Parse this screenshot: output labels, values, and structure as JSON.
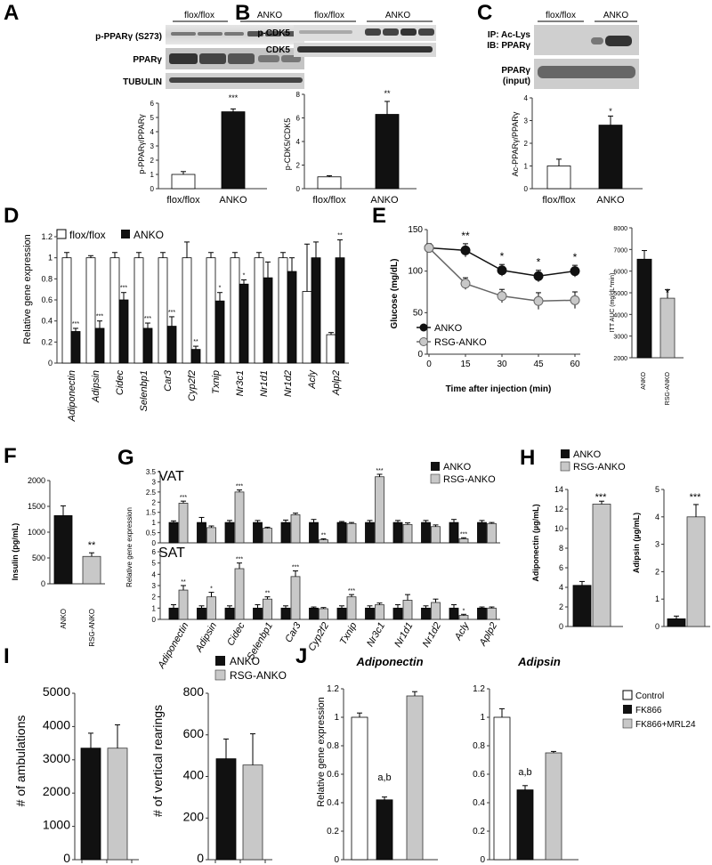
{
  "panels": {
    "A": {
      "letter": "A",
      "groups": [
        "flox/flox",
        "ANKO"
      ],
      "blots": [
        "p-PPARγ (S273)",
        "PPARγ",
        "TUBULIN"
      ],
      "ylabel": "p-PPARγ/PPARγ",
      "yticks": [
        "0",
        "1",
        "2",
        "3",
        "4",
        "5",
        "6"
      ],
      "xlabels": [
        "flox/flox",
        "ANKO"
      ],
      "sig": "***"
    },
    "B": {
      "letter": "B",
      "groups": [
        "flox/flox",
        "ANKO"
      ],
      "blots": [
        "p-CDK5",
        "CDK5"
      ],
      "ylabel": "p-CDK5/CDK5",
      "yticks": [
        "0",
        "2",
        "4",
        "6",
        "8"
      ],
      "xlabels": [
        "flox/flox",
        "ANKO"
      ],
      "sig": "**"
    },
    "C": {
      "letter": "C",
      "groups": [
        "flox/flox",
        "ANKO"
      ],
      "blots": [
        "IP: Ac-Lys",
        "IB: PPARγ",
        "PPARγ",
        "(input)"
      ],
      "ylabel": "Ac-PPARγ/PPARγ",
      "yticks": [
        "0",
        "1",
        "2",
        "3",
        "4"
      ],
      "xlabels": [
        "flox/flox",
        "ANKO"
      ],
      "sig": "*"
    },
    "D": {
      "letter": "D",
      "legend": [
        "flox/flox",
        "ANKO"
      ],
      "ylabel": "Relative gene expression",
      "yticks": [
        "0",
        "0.2",
        "0.4",
        "0.6",
        "0.8",
        "1",
        "1.2"
      ],
      "sigs": [
        "***",
        "***",
        "***",
        "***",
        "***",
        "**",
        "*",
        "*",
        "",
        "",
        "",
        "**"
      ]
    },
    "E": {
      "letter": "E",
      "ylabel": "Glucose (mg/dL)",
      "xlabel": "Time after injection (min)",
      "yticks": [
        "0",
        "50",
        "100",
        "150"
      ],
      "xticks": [
        "0",
        "15",
        "30",
        "45",
        "60"
      ],
      "legend": [
        "ANKO",
        "RSG-ANKO"
      ],
      "sigs": [
        "**",
        "*",
        "*",
        "*"
      ],
      "auc_ylabel": "ITT AUC (mg/dL*min)",
      "auc_yticks": [
        "2000",
        "3000",
        "4000",
        "5000",
        "6000",
        "7000",
        "8000"
      ],
      "auc_xlabels": [
        "ANKO",
        "RSG-ANKO"
      ],
      "auc_sig": "*"
    },
    "F": {
      "letter": "F",
      "ylabel": "Insulin (pg/mL)",
      "yticks": [
        "0",
        "500",
        "1000",
        "1500",
        "2000"
      ],
      "xlabels": [
        "ANKO",
        "RSG-ANKO"
      ],
      "sig": "**"
    },
    "G": {
      "letter": "G",
      "vat_label": "VAT",
      "sat_label": "SAT",
      "legend": [
        "ANKO",
        "RSG-ANKO"
      ],
      "ylabel": "Relative gene expression",
      "vat_yticks": [
        "0",
        "0.5",
        "1",
        "1.5",
        "2",
        "2.5",
        "3",
        "3.5"
      ],
      "sat_yticks": [
        "0",
        "1",
        "2",
        "3",
        "4",
        "5",
        "6"
      ],
      "vat_sigs": [
        "***",
        "",
        "***",
        "",
        "",
        "**",
        "",
        "***",
        "",
        "",
        "***",
        ""
      ],
      "sat_sigs": [
        "**",
        "*",
        "***",
        "**",
        "***",
        "",
        "***",
        "",
        "",
        "",
        "*",
        ""
      ]
    },
    "H": {
      "letter": "H",
      "legend": [
        "ANKO",
        "RSG-ANKO"
      ],
      "left_ylabel": "Adiponectin (µg/mL)",
      "left_yticks": [
        "0",
        "2",
        "4",
        "6",
        "8",
        "10",
        "12",
        "14"
      ],
      "right_ylabel": "Adipsin (µg/mL)",
      "right_yticks": [
        "0",
        "1",
        "2",
        "3",
        "4",
        "5"
      ],
      "sig": "***"
    },
    "I": {
      "letter": "I",
      "legend": [
        "ANKO",
        "RSG-ANKO"
      ],
      "left_ylabel": "# of ambulations",
      "left_yticks": [
        "0",
        "1000",
        "2000",
        "3000",
        "4000",
        "5000"
      ],
      "right_ylabel": "# of vertical rearings",
      "right_yticks": [
        "0",
        "200",
        "400",
        "600",
        "800"
      ]
    },
    "J": {
      "letter": "J",
      "left_title": "Adiponectin",
      "right_title": "Adipsin",
      "ylabel": "Relative gene expression",
      "left_yticks": [
        "0",
        "0.2",
        "0.4",
        "0.6",
        "0.8",
        "1",
        "1.2"
      ],
      "right_yticks": [
        "0",
        "0.2",
        "0.4",
        "0.6",
        "0.8",
        "1",
        "1.2"
      ],
      "legend": [
        "Control",
        "FK866",
        "FK866+MRL24"
      ],
      "sig": "a,b"
    }
  },
  "chart_data": [
    {
      "panel": "A",
      "type": "bar",
      "categories": [
        "flox/flox",
        "ANKO"
      ],
      "values": [
        1.0,
        5.4
      ],
      "errors": [
        0.2,
        0.2
      ],
      "ylabel": "p-PPARγ/PPARγ",
      "ylim": [
        0,
        6
      ]
    },
    {
      "panel": "B",
      "type": "bar",
      "categories": [
        "flox/flox",
        "ANKO"
      ],
      "values": [
        1.0,
        6.3
      ],
      "errors": [
        0.1,
        1.1
      ],
      "ylabel": "p-CDK5/CDK5",
      "ylim": [
        0,
        8
      ]
    },
    {
      "panel": "C",
      "type": "bar",
      "categories": [
        "flox/flox",
        "ANKO"
      ],
      "values": [
        1.0,
        2.8
      ],
      "errors": [
        0.3,
        0.4
      ],
      "ylabel": "Ac-PPARγ/PPARγ",
      "ylim": [
        0,
        4
      ]
    },
    {
      "panel": "D",
      "type": "bar",
      "ylabel": "Relative gene expression",
      "ylim": [
        0,
        1.2
      ],
      "categories": [
        "Adiponectin",
        "Adipsin",
        "Cidec",
        "Selenbp1",
        "Car3",
        "Cyp2f2",
        "Txnip",
        "Nr3c1",
        "Nr1d1",
        "Nr1d2",
        "Acly",
        "Aplp2"
      ],
      "series": [
        {
          "name": "flox/flox",
          "values": [
            1,
            1,
            1,
            1,
            1,
            1,
            1,
            1,
            1,
            1,
            0.68,
            0.27
          ],
          "errors": [
            0.05,
            0.02,
            0.05,
            0.05,
            0.05,
            0.15,
            0.05,
            0.05,
            0.05,
            0.05,
            0.45,
            0.02
          ]
        },
        {
          "name": "ANKO",
          "values": [
            0.3,
            0.33,
            0.6,
            0.33,
            0.35,
            0.13,
            0.59,
            0.75,
            0.81,
            0.87,
            1.0,
            1.0
          ],
          "errors": [
            0.03,
            0.07,
            0.07,
            0.05,
            0.09,
            0.03,
            0.08,
            0.04,
            0.15,
            0.13,
            0.15,
            0.17
          ]
        }
      ]
    },
    {
      "panel": "E",
      "type": "line",
      "ylabel": "Glucose (mg/dL)",
      "xlabel": "Time after injection (min)",
      "ylim": [
        0,
        150
      ],
      "xlim": [
        0,
        60
      ],
      "x": [
        0,
        15,
        30,
        45,
        60
      ],
      "series": [
        {
          "name": "ANKO",
          "values": [
            128,
            125,
            101,
            94,
            100
          ],
          "errors": [
            5,
            8,
            7,
            7,
            7
          ]
        },
        {
          "name": "RSG-ANKO",
          "values": [
            128,
            85,
            70,
            64,
            65
          ],
          "errors": [
            5,
            7,
            8,
            10,
            10
          ]
        }
      ]
    },
    {
      "panel": "E",
      "type": "bar",
      "categories": [
        "ANKO",
        "RSG-ANKO"
      ],
      "values": [
        6550,
        4750
      ],
      "errors": [
        400,
        400
      ],
      "ylabel": "ITT AUC (mg/dL*min)",
      "ylim": [
        2000,
        8000
      ]
    },
    {
      "panel": "F",
      "type": "bar",
      "categories": [
        "ANKO",
        "RSG-ANKO"
      ],
      "values": [
        1320,
        530
      ],
      "errors": [
        190,
        70
      ],
      "ylabel": "Insulin (pg/mL)",
      "ylim": [
        0,
        2000
      ]
    },
    {
      "panel": "G-VAT",
      "type": "bar",
      "ylabel": "Relative gene expression",
      "ylim": [
        0,
        3.5
      ],
      "categories": [
        "Adiponectin",
        "Adipsin",
        "Cidec",
        "Selenbp1",
        "Car3",
        "Cyp2f2",
        "Txnip",
        "Nr3c1",
        "Nr1d1",
        "Nr1d2",
        "Acly",
        "Aplp2"
      ],
      "series": [
        {
          "name": "ANKO",
          "values": [
            1,
            1,
            1,
            1,
            1,
            1,
            1,
            1,
            1,
            1,
            1,
            1
          ],
          "errors": [
            0.08,
            0.25,
            0.1,
            0.1,
            0.12,
            0.15,
            0.05,
            0.1,
            0.1,
            0.1,
            0.15,
            0.1
          ]
        },
        {
          "name": "RSG-ANKO",
          "values": [
            1.95,
            0.75,
            2.5,
            0.72,
            1.38,
            0.15,
            0.95,
            3.25,
            0.9,
            0.8,
            0.2,
            0.95
          ],
          "errors": [
            0.1,
            0.08,
            0.1,
            0.05,
            0.08,
            0.05,
            0.05,
            0.12,
            0.08,
            0.08,
            0.05,
            0.05
          ]
        }
      ]
    },
    {
      "panel": "G-SAT",
      "type": "bar",
      "ylabel": "Relative gene expression",
      "ylim": [
        0,
        6
      ],
      "categories": [
        "Adiponectin",
        "Adipsin",
        "Cidec",
        "Selenbp1",
        "Car3",
        "Cyp2f2",
        "Txnip",
        "Nr3c1",
        "Nr1d1",
        "Nr1d2",
        "Acly",
        "Aplp2"
      ],
      "series": [
        {
          "name": "ANKO",
          "values": [
            1,
            1,
            1,
            1,
            1,
            1,
            1,
            1,
            1,
            1,
            1,
            1
          ],
          "errors": [
            0.3,
            0.2,
            0.2,
            0.3,
            0.2,
            0.1,
            0.2,
            0.2,
            0.3,
            0.2,
            0.3,
            0.1
          ]
        },
        {
          "name": "RSG-ANKO",
          "values": [
            2.6,
            2.0,
            4.5,
            1.8,
            3.8,
            0.95,
            2.0,
            1.3,
            1.7,
            1.5,
            0.35,
            1.0
          ],
          "errors": [
            0.4,
            0.4,
            0.5,
            0.2,
            0.5,
            0.1,
            0.2,
            0.15,
            0.5,
            0.3,
            0.1,
            0.1
          ]
        }
      ]
    },
    {
      "panel": "H-left",
      "type": "bar",
      "categories": [
        "ANKO",
        "RSG-ANKO"
      ],
      "values": [
        4.2,
        12.5
      ],
      "errors": [
        0.4,
        0.3
      ],
      "ylabel": "Adiponectin (µg/mL)",
      "ylim": [
        0,
        14
      ]
    },
    {
      "panel": "H-right",
      "type": "bar",
      "categories": [
        "ANKO",
        "RSG-ANKO"
      ],
      "values": [
        0.28,
        4.0
      ],
      "errors": [
        0.1,
        0.45
      ],
      "ylabel": "Adipsin (µg/mL)",
      "ylim": [
        0,
        5
      ]
    },
    {
      "panel": "I-left",
      "type": "bar",
      "categories": [
        "ANKO",
        "RSG-ANKO"
      ],
      "values": [
        3350,
        3350
      ],
      "errors": [
        450,
        700
      ],
      "ylabel": "# of ambulations",
      "ylim": [
        0,
        5000
      ]
    },
    {
      "panel": "I-right",
      "type": "bar",
      "categories": [
        "ANKO",
        "RSG-ANKO"
      ],
      "values": [
        485,
        455
      ],
      "errors": [
        95,
        150
      ],
      "ylabel": "# of vertical rearings",
      "ylim": [
        0,
        800
      ]
    },
    {
      "panel": "J-left",
      "type": "bar",
      "title": "Adiponectin",
      "categories": [
        "Control",
        "FK866",
        "FK866+MRL24"
      ],
      "values": [
        1.0,
        0.42,
        1.15
      ],
      "errors": [
        0.03,
        0.02,
        0.03
      ],
      "ylabel": "Relative gene expression",
      "ylim": [
        0,
        1.2
      ]
    },
    {
      "panel": "J-right",
      "type": "bar",
      "title": "Adipsin",
      "categories": [
        "Control",
        "FK866",
        "FK866+MRL24"
      ],
      "values": [
        1.0,
        0.49,
        0.75
      ],
      "errors": [
        0.06,
        0.03,
        0.01
      ],
      "ylim": [
        0,
        1.2
      ]
    }
  ],
  "gene_labels": [
    "Adiponectin",
    "Adipsin",
    "Cidec",
    "Selenbp1",
    "Car3",
    "Cyp2f2",
    "Txnip",
    "Nr3c1",
    "Nr1d1",
    "Nr1d2",
    "Acly",
    "Aplp2"
  ],
  "colors": {
    "black": "#111111",
    "gray": "#c8c8c8",
    "white": "#ffffff",
    "axis": "#333333"
  }
}
